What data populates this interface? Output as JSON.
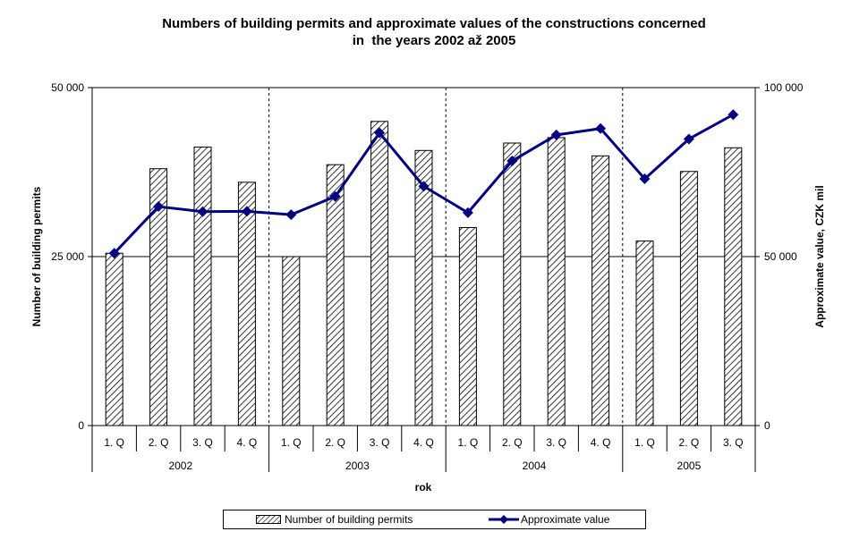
{
  "chart_data": {
    "type": "bar+line",
    "title_line1": "Numbers of building permits and approximate values of the constructions concerned",
    "title_line2": "in  the years 2002 až 2005",
    "xlabel": "rok",
    "ylabel_left": "Number of building permits",
    "ylabel_right": "Approximate value, CZK mil",
    "ylim_left": [
      0,
      50000
    ],
    "ylim_right": [
      0,
      100000
    ],
    "yticks_left": [
      "0",
      "25 000",
      "50 000"
    ],
    "yticks_right": [
      "0",
      "50 000",
      "100 000"
    ],
    "quarters": [
      "1. Q",
      "2. Q",
      "3. Q",
      "4. Q",
      "1. Q",
      "2. Q",
      "3. Q",
      "4. Q",
      "1. Q",
      "2. Q",
      "3. Q",
      "4. Q",
      "1. Q",
      "2. Q",
      "3. Q"
    ],
    "years": [
      {
        "label": "2002",
        "count": 4
      },
      {
        "label": "2003",
        "count": 4
      },
      {
        "label": "2004",
        "count": 4
      },
      {
        "label": "2005",
        "count": 3
      }
    ],
    "gridlines": "horizontal at 25 000; dashed vertical year separators",
    "legend_position": "bottom",
    "series": [
      {
        "name": "Number of building permits",
        "type": "bar",
        "axis": "left",
        "pattern": "diagonal-hatch",
        "values": [
          25500,
          38000,
          41200,
          36000,
          25000,
          38600,
          45000,
          40700,
          29300,
          41800,
          42600,
          39900,
          27300,
          37600,
          41100
        ]
      },
      {
        "name": "Approximate value",
        "type": "line",
        "axis": "right",
        "color": "#000080",
        "marker": "diamond",
        "values": [
          51000,
          64800,
          63300,
          63400,
          62400,
          67800,
          86600,
          70800,
          63000,
          78300,
          86000,
          87900,
          73000,
          84800,
          92000
        ]
      }
    ]
  }
}
